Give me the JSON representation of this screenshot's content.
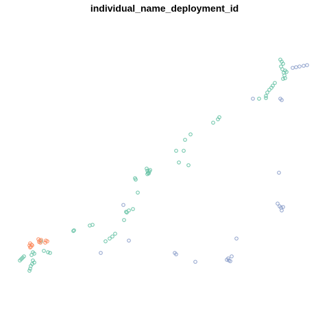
{
  "chart_data": {
    "type": "scatter",
    "title": "individual_name_deployment_id",
    "xlabel": "",
    "ylabel": "",
    "axes_visible": false,
    "grid": false,
    "legend": "none",
    "marker": "open-circle",
    "series": [
      {
        "color": "#66c2a5",
        "points": [
          [
            409,
            87
          ],
          [
            411,
            90
          ],
          [
            413,
            93
          ],
          [
            410,
            97
          ],
          [
            412,
            101
          ],
          [
            416,
            103
          ],
          [
            414,
            106
          ],
          [
            418,
            105
          ],
          [
            415,
            110
          ],
          [
            413,
            115
          ],
          [
            416,
            114
          ],
          [
            401,
            121
          ],
          [
            398,
            125
          ],
          [
            396,
            128
          ],
          [
            393,
            131
          ],
          [
            390,
            135
          ],
          [
            388,
            140
          ],
          [
            388,
            143
          ],
          [
            378,
            144
          ],
          [
            320,
            171
          ],
          [
            318,
            174
          ],
          [
            311,
            179
          ],
          [
            278,
            196
          ],
          [
            270,
            204
          ],
          [
            268,
            220
          ],
          [
            257,
            220
          ],
          [
            214,
            246
          ],
          [
            215,
            249
          ],
          [
            216,
            252
          ],
          [
            218,
            250
          ],
          [
            217,
            253
          ],
          [
            215,
            254
          ],
          [
            219,
            248
          ],
          [
            261,
            237
          ],
          [
            275,
            241
          ],
          [
            197,
            260
          ],
          [
            198,
            262
          ],
          [
            201,
            281
          ],
          [
            194,
            305
          ],
          [
            188,
            307
          ],
          [
            185,
            310
          ],
          [
            184,
            309
          ],
          [
            181,
            321
          ],
          [
            135,
            328
          ],
          [
            131,
            329
          ],
          [
            108,
            336
          ],
          [
            107,
            337
          ],
          [
            168,
            341
          ],
          [
            164,
            345
          ],
          [
            160,
            348
          ],
          [
            154,
            352
          ],
          [
            60,
            352
          ],
          [
            64,
            366
          ],
          [
            70,
            368
          ],
          [
            73,
            369
          ],
          [
            48,
            368
          ],
          [
            50,
            370
          ],
          [
            46,
            372
          ],
          [
            35,
            374
          ],
          [
            33,
            376
          ],
          [
            31,
            378
          ],
          [
            29,
            380
          ],
          [
            48,
            380
          ],
          [
            50,
            383
          ],
          [
            47,
            385
          ],
          [
            45,
            388
          ],
          [
            44,
            392
          ],
          [
            43,
            395
          ]
        ]
      },
      {
        "color": "#fc8d62",
        "points": [
          [
            44,
            355
          ],
          [
            46,
            357
          ],
          [
            43,
            358
          ],
          [
            45,
            360
          ],
          [
            47,
            358
          ],
          [
            44,
            361
          ],
          [
            56,
            349
          ],
          [
            58,
            351
          ],
          [
            60,
            350
          ],
          [
            57,
            353
          ],
          [
            59,
            354
          ],
          [
            67,
            351
          ],
          [
            69,
            352
          ],
          [
            66,
            354
          ]
        ]
      },
      {
        "color": "#8da0cb",
        "points": [
          [
            427,
            99
          ],
          [
            432,
            98
          ],
          [
            437,
            97
          ],
          [
            443,
            96
          ],
          [
            448,
            95
          ],
          [
            409,
            144
          ],
          [
            411,
            146
          ],
          [
            369,
            144
          ],
          [
            407,
            252
          ],
          [
            405,
            297
          ],
          [
            408,
            301
          ],
          [
            410,
            303
          ],
          [
            413,
            302
          ],
          [
            411,
            307
          ],
          [
            180,
            299
          ],
          [
            188,
            351
          ],
          [
            147,
            369
          ],
          [
            255,
            369
          ],
          [
            257,
            371
          ],
          [
            285,
            382
          ],
          [
            345,
            348
          ],
          [
            338,
            374
          ],
          [
            333,
            377
          ],
          [
            331,
            379
          ],
          [
            336,
            381
          ],
          [
            334,
            380
          ]
        ]
      }
    ]
  }
}
